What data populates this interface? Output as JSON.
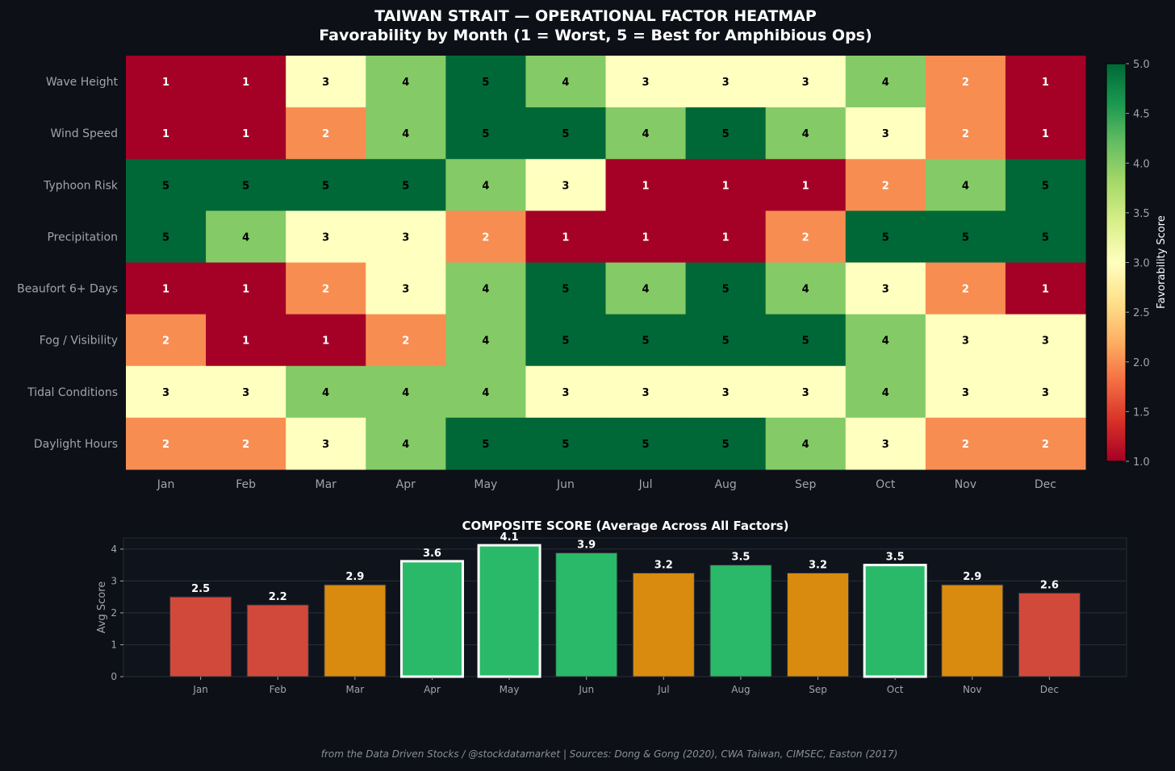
{
  "title_line1": "TAIWAN STRAIT — OPERATIONAL FACTOR HEATMAP",
  "title_line2": "Favorability by Month (1 = Worst, 5 = Best for Amphibious Ops)",
  "footer": "from the Data Driven Stocks / @stockdatamarket  |  Sources: Dong & Gong (2020), CWA Taiwan, CIMSEC, Easton (2017)",
  "chart_data": [
    {
      "type": "heatmap",
      "title": "Favorability by Month (1 = Worst, 5 = Best for Amphibious Ops)",
      "x": [
        "Jan",
        "Feb",
        "Mar",
        "Apr",
        "May",
        "Jun",
        "Jul",
        "Aug",
        "Sep",
        "Oct",
        "Nov",
        "Dec"
      ],
      "y": [
        "Wave Height",
        "Wind Speed",
        "Typhoon Risk",
        "Precipitation",
        "Beaufort 6+ Days",
        "Fog / Visibility",
        "Tidal Conditions",
        "Daylight Hours"
      ],
      "values": [
        [
          1,
          1,
          3,
          4,
          5,
          4,
          3,
          3,
          3,
          4,
          2,
          1
        ],
        [
          1,
          1,
          2,
          4,
          5,
          5,
          4,
          5,
          4,
          3,
          2,
          1
        ],
        [
          5,
          5,
          5,
          5,
          4,
          3,
          1,
          1,
          1,
          2,
          4,
          5
        ],
        [
          5,
          4,
          3,
          3,
          2,
          1,
          1,
          1,
          2,
          5,
          5,
          5
        ],
        [
          1,
          1,
          2,
          3,
          4,
          5,
          4,
          5,
          4,
          3,
          2,
          1
        ],
        [
          2,
          1,
          1,
          2,
          4,
          5,
          5,
          5,
          5,
          4,
          3,
          3
        ],
        [
          3,
          3,
          4,
          4,
          4,
          3,
          3,
          3,
          3,
          4,
          3,
          3
        ],
        [
          2,
          2,
          3,
          4,
          5,
          5,
          5,
          5,
          4,
          3,
          2,
          2
        ]
      ],
      "colorbar": {
        "label": "Favorability Score",
        "range": [
          1,
          5
        ],
        "ticks": [
          "1.0",
          "1.5",
          "2.0",
          "2.5",
          "3.0",
          "3.5",
          "4.0",
          "4.5",
          "5.0"
        ]
      },
      "colors": {
        "1": "#a50026",
        "2": "#f88d52",
        "3": "#ffffbf",
        "4": "#84ca66",
        "5": "#006837"
      }
    },
    {
      "type": "bar",
      "title": "COMPOSITE SCORE (Average Across All Factors)",
      "categories": [
        "Jan",
        "Feb",
        "Mar",
        "Apr",
        "May",
        "Jun",
        "Jul",
        "Aug",
        "Sep",
        "Oct",
        "Nov",
        "Dec"
      ],
      "values": [
        2.5,
        2.25,
        2.88,
        3.62,
        4.12,
        3.88,
        3.25,
        3.5,
        3.25,
        3.5,
        2.88,
        2.62
      ],
      "labels": [
        "2.5",
        "2.2",
        "2.9",
        "3.6",
        "4.1",
        "3.9",
        "3.2",
        "3.5",
        "3.2",
        "3.5",
        "2.9",
        "2.6"
      ],
      "highlighted": [
        "Apr",
        "May",
        "Oct"
      ],
      "xlabel": "",
      "ylabel": "Avg Score",
      "ylim": [
        0,
        4.35
      ],
      "yticks": [
        "0",
        "1",
        "2",
        "3",
        "4"
      ],
      "grid": true,
      "colors": {
        "low": "#d1493b",
        "mid": "#d98b10",
        "high": "#2ab968",
        "highlight_edge": "#ffffff"
      }
    }
  ]
}
